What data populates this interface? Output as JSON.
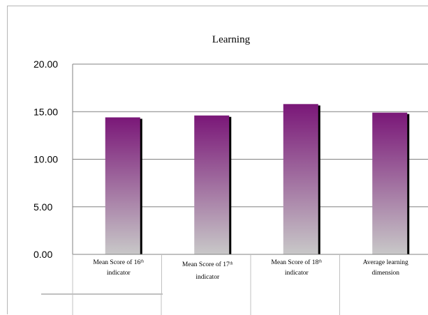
{
  "chart_data": {
    "type": "bar",
    "title": "Learning",
    "xlabel": "",
    "ylabel": "",
    "ylim": [
      0,
      20
    ],
    "yticks": [
      "0.00",
      "5.00",
      "10.00",
      "15.00",
      "20.00"
    ],
    "grid": true,
    "legend": "none",
    "categories": [
      [
        "Mean Score of 16ᵗʰ",
        "indicator"
      ],
      [
        "Mean Score of 17ᵗʰ",
        "indicator"
      ],
      [
        "Mean Score of 18ᵗʰ",
        "indicator"
      ],
      [
        "Average learning",
        "dimension"
      ]
    ],
    "values": [
      14.4,
      14.6,
      15.8,
      14.9
    ],
    "colors": {
      "bar_top": "#7a1778",
      "bar_bottom": "#c8c8c8",
      "bar_shadow": "#000000",
      "grid": "#808080"
    }
  }
}
